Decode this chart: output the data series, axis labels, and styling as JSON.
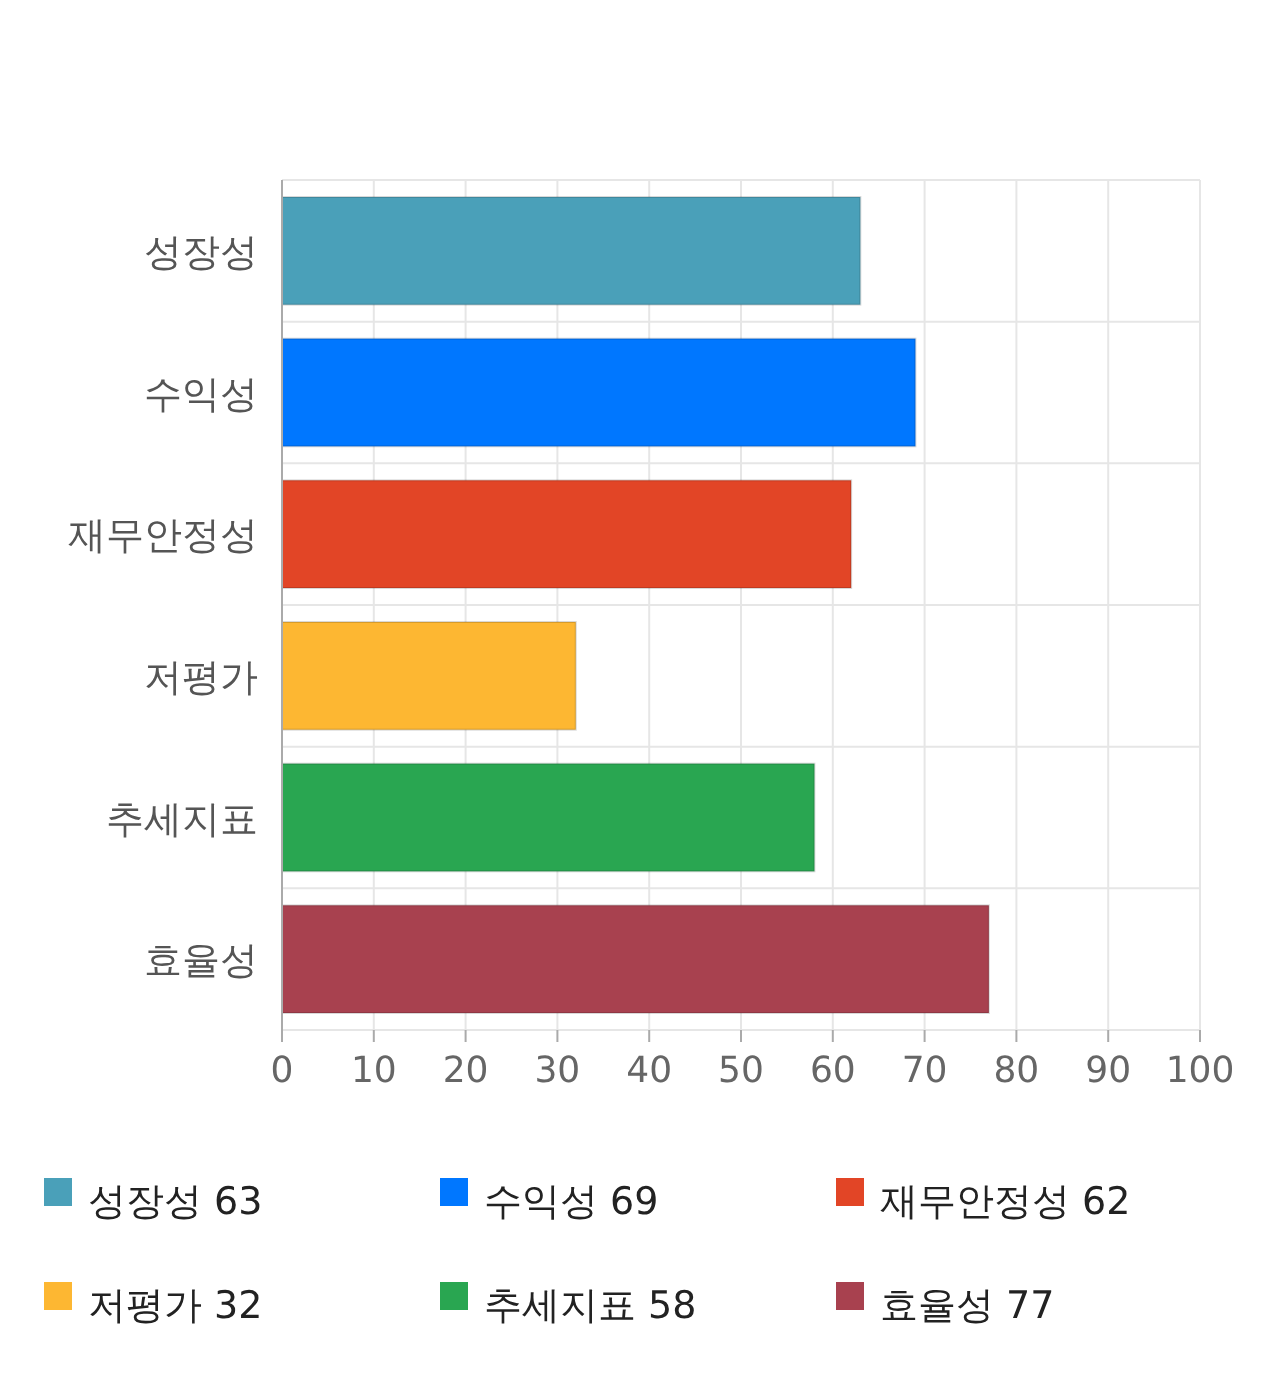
{
  "chart_data": {
    "type": "bar",
    "orientation": "horizontal",
    "stacked": true,
    "categories": [
      "성장성",
      "수익성",
      "재무안정성",
      "저평가",
      "추세지표",
      "효율성"
    ],
    "series": [
      {
        "name": "성장성 63",
        "color": "#4aa0b9",
        "values": [
          63,
          null,
          null,
          null,
          null,
          null
        ]
      },
      {
        "name": "수익성 69",
        "color": "#0077ff",
        "values": [
          null,
          69,
          null,
          null,
          null,
          null
        ]
      },
      {
        "name": "재무안정성 62",
        "color": "#e24526",
        "values": [
          null,
          null,
          62,
          null,
          null,
          null
        ]
      },
      {
        "name": "저평가 32",
        "color": "#fdb732",
        "values": [
          null,
          null,
          null,
          32,
          null,
          null
        ]
      },
      {
        "name": "추세지표 58",
        "color": "#29a651",
        "values": [
          null,
          null,
          null,
          null,
          58,
          null
        ]
      },
      {
        "name": "효율성 77",
        "color": "#a8414f",
        "values": [
          null,
          null,
          null,
          null,
          null,
          77
        ]
      }
    ],
    "xlim": [
      0,
      100
    ],
    "xticks": [
      0,
      10,
      20,
      30,
      40,
      50,
      60,
      70,
      80,
      90,
      100
    ],
    "grid": true,
    "legend": "bottom"
  }
}
